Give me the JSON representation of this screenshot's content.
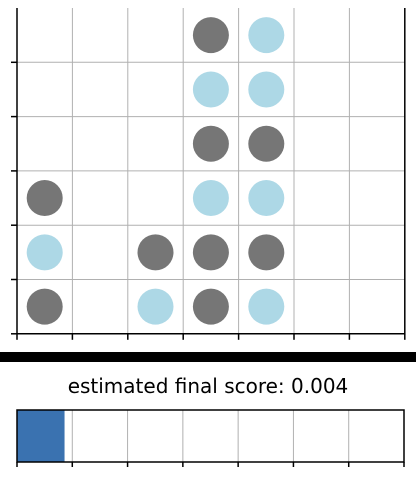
{
  "board": {
    "columns": 7,
    "rows": 6,
    "discs": [
      {
        "row": 0,
        "col": 3,
        "player": "dark"
      },
      {
        "row": 0,
        "col": 4,
        "player": "light"
      },
      {
        "row": 1,
        "col": 3,
        "player": "light"
      },
      {
        "row": 1,
        "col": 4,
        "player": "light"
      },
      {
        "row": 2,
        "col": 3,
        "player": "dark"
      },
      {
        "row": 2,
        "col": 4,
        "player": "dark"
      },
      {
        "row": 3,
        "col": 0,
        "player": "dark"
      },
      {
        "row": 3,
        "col": 3,
        "player": "light"
      },
      {
        "row": 3,
        "col": 4,
        "player": "light"
      },
      {
        "row": 4,
        "col": 0,
        "player": "light"
      },
      {
        "row": 4,
        "col": 2,
        "player": "dark"
      },
      {
        "row": 4,
        "col": 3,
        "player": "dark"
      },
      {
        "row": 4,
        "col": 4,
        "player": "dark"
      },
      {
        "row": 5,
        "col": 0,
        "player": "dark"
      },
      {
        "row": 5,
        "col": 2,
        "player": "light"
      },
      {
        "row": 5,
        "col": 3,
        "player": "dark"
      },
      {
        "row": 5,
        "col": 4,
        "player": "light"
      }
    ]
  },
  "score": {
    "label": "estimated final score: 0.004",
    "bar_fraction": 0.004,
    "bar_segments": 7
  },
  "colors": {
    "dark_disc": "#767676",
    "light_disc": "#add8e6",
    "grid": "#b0b0b0",
    "frame": "#000000",
    "score_fill": "#3a72b0",
    "background": "#ffffff"
  }
}
